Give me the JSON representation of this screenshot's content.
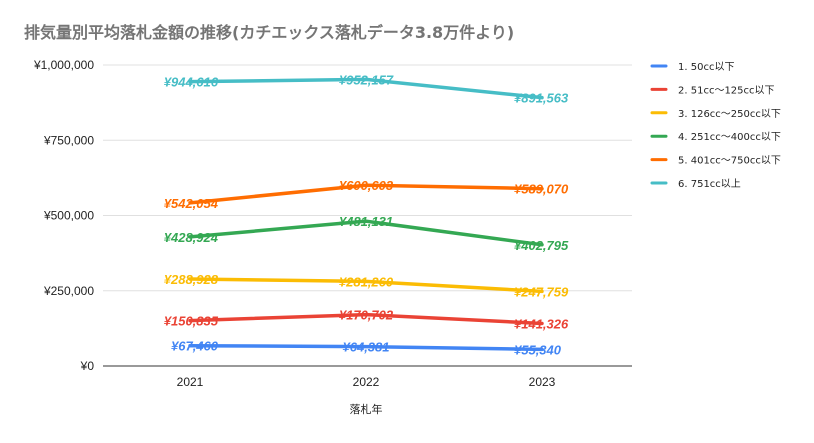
{
  "chart_data": {
    "type": "line",
    "title": "排気量別平均落札金額の推移(カチエックス落札データ3.8万件より)",
    "xlabel": "落札年",
    "ylabel": "",
    "categories": [
      "2021",
      "2022",
      "2023"
    ],
    "ylim": [
      0,
      1000000
    ],
    "yticks": [
      0,
      250000,
      500000,
      750000,
      1000000
    ],
    "ytick_labels": [
      "¥0",
      "¥250,000",
      "¥500,000",
      "¥750,000",
      "¥1,000,000"
    ],
    "grid": true,
    "legend_position": "right",
    "series": [
      {
        "name": "1. 50cc以下",
        "color": "#4285f4",
        "values": [
          67460,
          64381,
          55340
        ],
        "labels": [
          "¥67,460",
          "¥64,381",
          "¥55,340"
        ]
      },
      {
        "name": "2. 51cc～125cc以下",
        "color": "#ea4335",
        "values": [
          150835,
          170702,
          141326
        ],
        "labels": [
          "¥150,835",
          "¥170,702",
          "¥141,326"
        ]
      },
      {
        "name": "3. 126cc～250cc以下",
        "color": "#fbbc04",
        "values": [
          288928,
          281260,
          247759
        ],
        "labels": [
          "¥288,928",
          "¥281,260",
          "¥247,759"
        ]
      },
      {
        "name": "4. 251cc～400cc以下",
        "color": "#34a853",
        "values": [
          428924,
          481131,
          402795
        ],
        "labels": [
          "¥428,924",
          "¥481,131",
          "¥402,795"
        ]
      },
      {
        "name": "5. 401cc～750cc以下",
        "color": "#ff6d01",
        "values": [
          542054,
          600603,
          589070
        ],
        "labels": [
          "¥542,054",
          "¥600,603",
          "¥589,070"
        ]
      },
      {
        "name": "6. 751cc以上",
        "color": "#46bdc6",
        "values": [
          944616,
          952157,
          891563
        ],
        "labels": [
          "¥944,616",
          "¥952,157",
          "¥891,563"
        ]
      }
    ]
  }
}
